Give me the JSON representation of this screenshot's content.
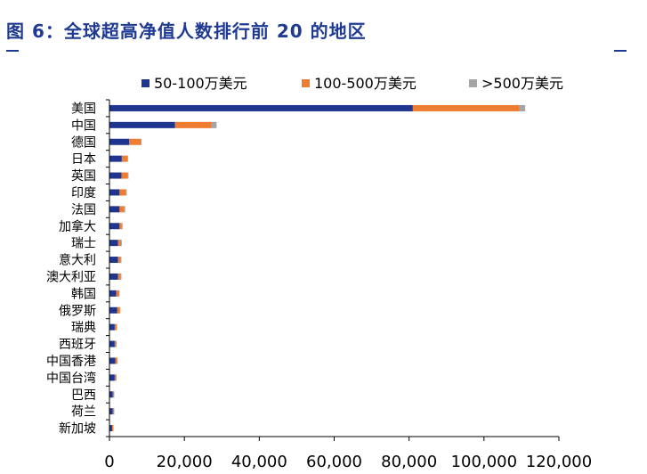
{
  "header": {
    "title": "图 6：全球超高净值人数排行前 20 的地区"
  },
  "colors": {
    "title": "#1f3a93",
    "series": [
      "#1f3590",
      "#ee7d31",
      "#a5a5a5"
    ]
  },
  "chart_data": {
    "type": "bar",
    "orientation": "horizontal",
    "stacked": true,
    "categories": [
      "美国",
      "中国",
      "德国",
      "日本",
      "英国",
      "印度",
      "法国",
      "加拿大",
      "瑞士",
      "意大利",
      "澳大利亚",
      "韩国",
      "俄罗斯",
      "瑞典",
      "西班牙",
      "中国香港",
      "中国台湾",
      "巴西",
      "荷兰",
      "新加坡"
    ],
    "series": [
      {
        "name": "50-100万美元",
        "values": [
          81000,
          17500,
          5300,
          3300,
          3200,
          2700,
          2700,
          2700,
          2300,
          2300,
          2300,
          1800,
          2100,
          1400,
          1400,
          1600,
          1400,
          900,
          900,
          700
        ]
      },
      {
        "name": "100-500万美元",
        "values": [
          28500,
          9800,
          3100,
          1500,
          1700,
          1700,
          1300,
          600,
          800,
          700,
          700,
          800,
          700,
          500,
          400,
          500,
          400,
          300,
          300,
          300
        ]
      },
      {
        "name": ">500万美元",
        "values": [
          1500,
          1300,
          200,
          200,
          200,
          200,
          200,
          200,
          200,
          200,
          200,
          100,
          100,
          100,
          100,
          100,
          100,
          100,
          100,
          100
        ]
      }
    ],
    "xlim": [
      0,
      120000
    ],
    "xticks": [
      "0",
      "20,000",
      "40,000",
      "60,000",
      "80,000",
      "100,000",
      "120,000"
    ],
    "xlabel": "",
    "ylabel": "",
    "grid": false,
    "legend": "top"
  }
}
